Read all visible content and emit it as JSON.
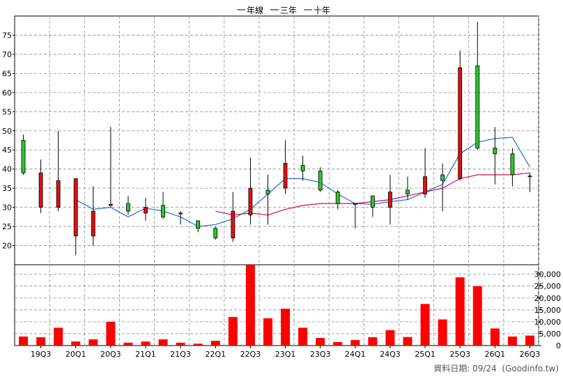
{
  "legend": [
    {
      "label": "年線",
      "color": "#1e6fd6"
    },
    {
      "label": "三年",
      "color": "#d0104c"
    },
    {
      "label": "十年",
      "color": "#b03080"
    }
  ],
  "footer_text": "資料日期: 09/24  (Goodinfo.tw)",
  "colors": {
    "up": "#2ec42e",
    "down": "#e01010",
    "volume": "#ff0000",
    "grid": "#8c8c8c",
    "frame": "#000000"
  },
  "chart_data": [
    {
      "type": "candlestick",
      "title": "",
      "ylim": [
        15,
        80
      ],
      "yticks": [
        20,
        25,
        30,
        35,
        40,
        45,
        50,
        55,
        60,
        65,
        70,
        75
      ],
      "xtick_labels": [
        {
          "label": "19Q3",
          "q": 1
        },
        {
          "label": "20Q1",
          "q": 3
        },
        {
          "label": "20Q3",
          "q": 5
        },
        {
          "label": "21Q1",
          "q": 7
        },
        {
          "label": "21Q3",
          "q": 9
        },
        {
          "label": "22Q1",
          "q": 11
        },
        {
          "label": "22Q3",
          "q": 13
        },
        {
          "label": "23Q1",
          "q": 15
        },
        {
          "label": "23Q3",
          "q": 17
        },
        {
          "label": "24Q1",
          "q": 19
        },
        {
          "label": "24Q3",
          "q": 21
        },
        {
          "label": "25Q1",
          "q": 23
        },
        {
          "label": "25Q3",
          "q": 25
        },
        {
          "label": "26Q1",
          "q": 27
        },
        {
          "label": "26Q3",
          "q": 29
        }
      ],
      "candles": [
        {
          "open": 39.0,
          "close": 47.5,
          "high": 49.0,
          "low": 38.5
        },
        {
          "open": 39.0,
          "close": 30.0,
          "high": 42.5,
          "low": 28.5
        },
        {
          "open": 37.0,
          "close": 30.0,
          "high": 50.0,
          "low": 29.0
        },
        {
          "open": 37.5,
          "close": 22.5,
          "high": 37.5,
          "low": 17.5
        },
        {
          "open": 29.0,
          "close": 22.5,
          "high": 35.5,
          "low": 20.0
        },
        {
          "open": 30.8,
          "close": 30.5,
          "high": 51.0,
          "low": 30.0
        },
        {
          "open": 29.0,
          "close": 31.0,
          "high": 33.0,
          "low": 28.0
        },
        {
          "open": 30.0,
          "close": 28.5,
          "high": 32.5,
          "low": 26.5
        },
        {
          "open": 27.5,
          "close": 30.5,
          "high": 34.0,
          "low": 27.0
        },
        {
          "open": 28.5,
          "close": 28.3,
          "high": 29.0,
          "low": 25.5
        },
        {
          "open": 24.5,
          "close": 26.5,
          "high": 26.5,
          "low": 23.5
        },
        {
          "open": 22.0,
          "close": 24.5,
          "high": 25.0,
          "low": 21.5
        },
        {
          "open": 29.0,
          "close": 22.0,
          "high": 34.0,
          "low": 21.0
        },
        {
          "open": 35.0,
          "close": 28.0,
          "high": 43.0,
          "low": 25.5
        },
        {
          "open": 33.5,
          "close": 34.5,
          "high": 38.5,
          "low": 25.5
        },
        {
          "open": 41.5,
          "close": 35.0,
          "high": 47.5,
          "low": 33.5
        },
        {
          "open": 39.5,
          "close": 41.0,
          "high": 43.5,
          "low": 37.0
        },
        {
          "open": 34.5,
          "close": 39.5,
          "high": 40.5,
          "low": 34.0
        },
        {
          "open": 31.0,
          "close": 34.0,
          "high": 34.5,
          "low": 29.5
        },
        {
          "open": 31.0,
          "close": 30.8,
          "high": 31.0,
          "low": 24.5
        },
        {
          "open": 30.0,
          "close": 33.0,
          "high": 33.0,
          "low": 27.5
        },
        {
          "open": 34.0,
          "close": 30.0,
          "high": 38.5,
          "low": 25.5
        },
        {
          "open": 33.5,
          "close": 34.5,
          "high": 38.0,
          "low": 32.0
        },
        {
          "open": 38.0,
          "close": 33.5,
          "high": 45.5,
          "low": 32.5
        },
        {
          "open": 37.0,
          "close": 38.5,
          "high": 41.5,
          "low": 29.0
        },
        {
          "open": 66.5,
          "close": 37.5,
          "high": 71.0,
          "low": 37.0
        },
        {
          "open": 45.5,
          "close": 67.0,
          "high": 78.5,
          "low": 45.0
        },
        {
          "open": 44.0,
          "close": 45.5,
          "high": 51.0,
          "low": 36.0
        },
        {
          "open": 38.5,
          "close": 44.0,
          "high": 45.5,
          "low": 35.5
        },
        {
          "open": 38.0,
          "close": 38.2,
          "high": 39.0,
          "low": 34.0
        }
      ],
      "series": [
        {
          "name": "年線",
          "color": "#1e6fd6",
          "values": [
            null,
            null,
            null,
            32.0,
            29.5,
            30.0,
            27.5,
            29.8,
            29.0,
            27.5,
            25.0,
            25.5,
            27.0,
            29.5,
            33.5,
            37.5,
            37.5,
            36.5,
            33.5,
            31.0,
            30.8,
            31.5,
            32.0,
            34.0,
            36.0,
            44.0,
            47.0,
            48.0,
            48.3,
            40.5
          ]
        },
        {
          "name": "三年",
          "color": "#d0104c",
          "values": [
            null,
            null,
            null,
            null,
            null,
            null,
            null,
            null,
            null,
            null,
            null,
            29.0,
            28.0,
            28.5,
            28.0,
            29.5,
            30.5,
            31.0,
            31.0,
            31.0,
            31.5,
            32.0,
            33.0,
            34.0,
            35.0,
            37.5,
            38.5,
            38.5,
            38.5,
            39.0
          ]
        }
      ]
    },
    {
      "type": "bar",
      "title": "",
      "ylim": [
        0,
        34000
      ],
      "yticks": [
        0,
        5000,
        10000,
        15000,
        20000,
        25000,
        30000
      ],
      "ytick_labels": [
        "0",
        "5,000",
        "10,000",
        "15,000",
        "20,000",
        "25,000",
        "30,000"
      ],
      "values": [
        3800,
        3500,
        7500,
        1700,
        2600,
        10000,
        1200,
        1700,
        2600,
        1200,
        800,
        2000,
        12000,
        34000,
        11500,
        15500,
        7500,
        3200,
        1500,
        2300,
        3500,
        6500,
        3600,
        17500,
        11000,
        28700,
        25000,
        7200,
        3800,
        4200
      ]
    }
  ]
}
